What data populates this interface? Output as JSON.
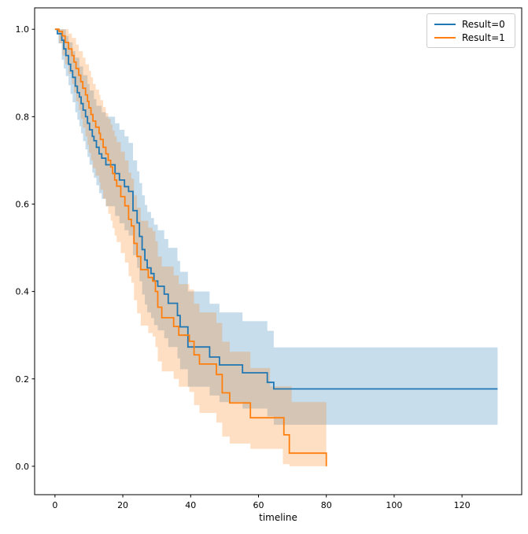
{
  "chart_data": {
    "type": "line",
    "subtype": "kaplan-meier-step-with-confidence-bands",
    "title": "",
    "xlabel": "timeline",
    "ylabel": "",
    "xlim": [
      -6,
      137.6
    ],
    "ylim": [
      -0.065,
      1.049
    ],
    "x_ticks": [
      0,
      20,
      40,
      60,
      80,
      100,
      120
    ],
    "y_ticks": [
      0.0,
      0.2,
      0.4,
      0.6,
      0.8,
      1.0
    ],
    "grid": false,
    "legend_position": "upper right",
    "band_opacity": 0.25,
    "series": [
      {
        "name": "Result=0",
        "color": "#1f77b4",
        "points": [
          [
            0,
            1.0
          ],
          [
            0.7,
            0.99
          ],
          [
            2,
            0.975
          ],
          [
            2.6,
            0.955
          ],
          [
            3.2,
            0.94
          ],
          [
            4,
            0.92
          ],
          [
            4.6,
            0.905
          ],
          [
            5.2,
            0.89
          ],
          [
            6,
            0.87
          ],
          [
            6.6,
            0.855
          ],
          [
            7.2,
            0.845
          ],
          [
            7.7,
            0.83
          ],
          [
            8.3,
            0.815
          ],
          [
            9,
            0.8
          ],
          [
            9.6,
            0.785
          ],
          [
            10.2,
            0.77
          ],
          [
            11,
            0.755
          ],
          [
            11.5,
            0.745
          ],
          [
            12.2,
            0.73
          ],
          [
            13,
            0.715
          ],
          [
            13.8,
            0.705
          ],
          [
            15,
            0.69
          ],
          [
            17.7,
            0.67
          ],
          [
            19,
            0.655
          ],
          [
            20.5,
            0.64
          ],
          [
            21.7,
            0.629
          ],
          [
            23,
            0.585
          ],
          [
            24.2,
            0.557
          ],
          [
            24.9,
            0.526
          ],
          [
            25.7,
            0.496
          ],
          [
            26.5,
            0.472
          ],
          [
            27.2,
            0.454
          ],
          [
            28.3,
            0.441
          ],
          [
            29.2,
            0.424
          ],
          [
            30.3,
            0.412
          ],
          [
            32.2,
            0.394
          ],
          [
            33.4,
            0.373
          ],
          [
            36.1,
            0.345
          ],
          [
            36.9,
            0.319
          ],
          [
            39.2,
            0.273
          ],
          [
            45.6,
            0.25
          ],
          [
            48.5,
            0.232
          ],
          [
            55.3,
            0.214
          ],
          [
            62.6,
            0.192
          ],
          [
            64.5,
            0.177
          ],
          [
            130.5,
            0.177
          ]
        ],
        "ci_upper": [
          [
            0,
            1.0
          ],
          [
            2.6,
            1.0
          ],
          [
            3.2,
            0.985
          ],
          [
            4,
            0.97
          ],
          [
            5.2,
            0.95
          ],
          [
            6,
            0.935
          ],
          [
            7.2,
            0.915
          ],
          [
            8.3,
            0.895
          ],
          [
            9.6,
            0.875
          ],
          [
            10.2,
            0.86
          ],
          [
            11.5,
            0.84
          ],
          [
            12.2,
            0.825
          ],
          [
            13.8,
            0.81
          ],
          [
            15,
            0.8
          ],
          [
            17.7,
            0.785
          ],
          [
            19,
            0.77
          ],
          [
            20.5,
            0.755
          ],
          [
            21.7,
            0.74
          ],
          [
            23,
            0.7
          ],
          [
            24.2,
            0.675
          ],
          [
            24.9,
            0.648
          ],
          [
            25.7,
            0.62
          ],
          [
            26.5,
            0.598
          ],
          [
            27.2,
            0.582
          ],
          [
            28.3,
            0.568
          ],
          [
            29.2,
            0.553
          ],
          [
            30.3,
            0.54
          ],
          [
            32.2,
            0.52
          ],
          [
            33.4,
            0.5
          ],
          [
            36.1,
            0.47
          ],
          [
            36.9,
            0.445
          ],
          [
            39.2,
            0.4
          ],
          [
            45.6,
            0.372
          ],
          [
            48.5,
            0.352
          ],
          [
            55.3,
            0.332
          ],
          [
            62.6,
            0.31
          ],
          [
            64.5,
            0.272
          ],
          [
            130.5,
            0.272
          ]
        ],
        "ci_lower": [
          [
            0,
            1.0
          ],
          [
            1,
            0.968
          ],
          [
            2,
            0.93
          ],
          [
            2.6,
            0.91
          ],
          [
            3.2,
            0.893
          ],
          [
            4,
            0.872
          ],
          [
            4.6,
            0.852
          ],
          [
            5.2,
            0.833
          ],
          [
            6,
            0.81
          ],
          [
            6.6,
            0.793
          ],
          [
            7.2,
            0.778
          ],
          [
            7.7,
            0.762
          ],
          [
            8.3,
            0.744
          ],
          [
            9,
            0.725
          ],
          [
            9.6,
            0.708
          ],
          [
            10.2,
            0.69
          ],
          [
            11,
            0.672
          ],
          [
            11.5,
            0.66
          ],
          [
            12.2,
            0.643
          ],
          [
            13,
            0.625
          ],
          [
            13.8,
            0.612
          ],
          [
            15,
            0.595
          ],
          [
            17.7,
            0.573
          ],
          [
            19,
            0.556
          ],
          [
            20.5,
            0.54
          ],
          [
            21.7,
            0.528
          ],
          [
            23,
            0.483
          ],
          [
            24.2,
            0.454
          ],
          [
            24.9,
            0.423
          ],
          [
            25.7,
            0.393
          ],
          [
            26.5,
            0.37
          ],
          [
            27.2,
            0.352
          ],
          [
            28.3,
            0.339
          ],
          [
            29.2,
            0.323
          ],
          [
            30.3,
            0.311
          ],
          [
            32.2,
            0.293
          ],
          [
            33.4,
            0.273
          ],
          [
            36.1,
            0.247
          ],
          [
            36.9,
            0.222
          ],
          [
            39.2,
            0.182
          ],
          [
            45.6,
            0.162
          ],
          [
            48.5,
            0.147
          ],
          [
            55.3,
            0.132
          ],
          [
            62.6,
            0.114
          ],
          [
            64.5,
            0.095
          ],
          [
            130.5,
            0.095
          ]
        ]
      },
      {
        "name": "Result=1",
        "color": "#ff7f0e",
        "points": [
          [
            0,
            1.0
          ],
          [
            1.2,
            0.995
          ],
          [
            2.2,
            0.985
          ],
          [
            3,
            0.97
          ],
          [
            4,
            0.955
          ],
          [
            5,
            0.94
          ],
          [
            5.6,
            0.925
          ],
          [
            6.2,
            0.91
          ],
          [
            7,
            0.895
          ],
          [
            7.6,
            0.88
          ],
          [
            8.2,
            0.865
          ],
          [
            9,
            0.85
          ],
          [
            9.6,
            0.835
          ],
          [
            10,
            0.82
          ],
          [
            10.6,
            0.805
          ],
          [
            11.2,
            0.79
          ],
          [
            12,
            0.776
          ],
          [
            13,
            0.762
          ],
          [
            13.4,
            0.748
          ],
          [
            14.2,
            0.73
          ],
          [
            15,
            0.715
          ],
          [
            15.7,
            0.7
          ],
          [
            16.4,
            0.685
          ],
          [
            17,
            0.67
          ],
          [
            17.6,
            0.655
          ],
          [
            18.2,
            0.641
          ],
          [
            19.4,
            0.617
          ],
          [
            20.6,
            0.596
          ],
          [
            21.7,
            0.565
          ],
          [
            22.5,
            0.55
          ],
          [
            23.3,
            0.51
          ],
          [
            24.2,
            0.48
          ],
          [
            25.3,
            0.45
          ],
          [
            27.5,
            0.432
          ],
          [
            28.8,
            0.424
          ],
          [
            29.6,
            0.4
          ],
          [
            30.3,
            0.364
          ],
          [
            31.5,
            0.34
          ],
          [
            35,
            0.32
          ],
          [
            36.5,
            0.3
          ],
          [
            39.6,
            0.286
          ],
          [
            41,
            0.255
          ],
          [
            42.6,
            0.234
          ],
          [
            47.6,
            0.21
          ],
          [
            49.3,
            0.168
          ],
          [
            51.5,
            0.145
          ],
          [
            57.6,
            0.111
          ],
          [
            67.5,
            0.072
          ],
          [
            69.1,
            0.03
          ],
          [
            80,
            0.0
          ]
        ],
        "ci_upper": [
          [
            0,
            1.0
          ],
          [
            3,
            1.0
          ],
          [
            4,
            0.99
          ],
          [
            5,
            0.98
          ],
          [
            6.2,
            0.965
          ],
          [
            7,
            0.95
          ],
          [
            8.2,
            0.935
          ],
          [
            9,
            0.92
          ],
          [
            10,
            0.905
          ],
          [
            10.6,
            0.89
          ],
          [
            11.2,
            0.875
          ],
          [
            12,
            0.862
          ],
          [
            13,
            0.85
          ],
          [
            13.4,
            0.838
          ],
          [
            14.2,
            0.822
          ],
          [
            15,
            0.808
          ],
          [
            15.7,
            0.795
          ],
          [
            16.4,
            0.782
          ],
          [
            17,
            0.768
          ],
          [
            17.6,
            0.755
          ],
          [
            18.2,
            0.742
          ],
          [
            19.4,
            0.72
          ],
          [
            20.6,
            0.7
          ],
          [
            21.7,
            0.672
          ],
          [
            22.5,
            0.658
          ],
          [
            23.3,
            0.62
          ],
          [
            24.2,
            0.592
          ],
          [
            25.3,
            0.562
          ],
          [
            27.5,
            0.546
          ],
          [
            28.8,
            0.538
          ],
          [
            29.6,
            0.515
          ],
          [
            30.3,
            0.48
          ],
          [
            31.5,
            0.457
          ],
          [
            35,
            0.437
          ],
          [
            36.5,
            0.417
          ],
          [
            39.6,
            0.404
          ],
          [
            41,
            0.372
          ],
          [
            42.6,
            0.352
          ],
          [
            47.6,
            0.328
          ],
          [
            49.3,
            0.285
          ],
          [
            51.5,
            0.262
          ],
          [
            57.6,
            0.225
          ],
          [
            63.4,
            0.183
          ],
          [
            69.8,
            0.147
          ],
          [
            80,
            0.147
          ]
        ],
        "ci_lower": [
          [
            0,
            1.0
          ],
          [
            1.2,
            0.968
          ],
          [
            2.2,
            0.94
          ],
          [
            3,
            0.92
          ],
          [
            4,
            0.898
          ],
          [
            5,
            0.875
          ],
          [
            5.6,
            0.855
          ],
          [
            6.2,
            0.835
          ],
          [
            7,
            0.815
          ],
          [
            7.6,
            0.795
          ],
          [
            8.2,
            0.775
          ],
          [
            9,
            0.755
          ],
          [
            9.6,
            0.735
          ],
          [
            10,
            0.717
          ],
          [
            10.6,
            0.7
          ],
          [
            11.2,
            0.682
          ],
          [
            12,
            0.665
          ],
          [
            13,
            0.65
          ],
          [
            13.4,
            0.633
          ],
          [
            14.2,
            0.612
          ],
          [
            15,
            0.595
          ],
          [
            15.7,
            0.578
          ],
          [
            16.4,
            0.562
          ],
          [
            17,
            0.545
          ],
          [
            17.6,
            0.528
          ],
          [
            18.2,
            0.513
          ],
          [
            19.4,
            0.488
          ],
          [
            20.6,
            0.466
          ],
          [
            21.7,
            0.435
          ],
          [
            22.5,
            0.42
          ],
          [
            23.3,
            0.38
          ],
          [
            24.2,
            0.35
          ],
          [
            25.3,
            0.322
          ],
          [
            27.5,
            0.305
          ],
          [
            28.8,
            0.297
          ],
          [
            29.6,
            0.273
          ],
          [
            30.3,
            0.24
          ],
          [
            31.5,
            0.217
          ],
          [
            35,
            0.2
          ],
          [
            36.5,
            0.182
          ],
          [
            39.6,
            0.17
          ],
          [
            41,
            0.14
          ],
          [
            42.6,
            0.122
          ],
          [
            47.6,
            0.1
          ],
          [
            49.3,
            0.068
          ],
          [
            51.5,
            0.052
          ],
          [
            57.6,
            0.04
          ],
          [
            67.2,
            0.005
          ],
          [
            69.1,
            0.0
          ],
          [
            80,
            0.0
          ]
        ]
      }
    ]
  }
}
